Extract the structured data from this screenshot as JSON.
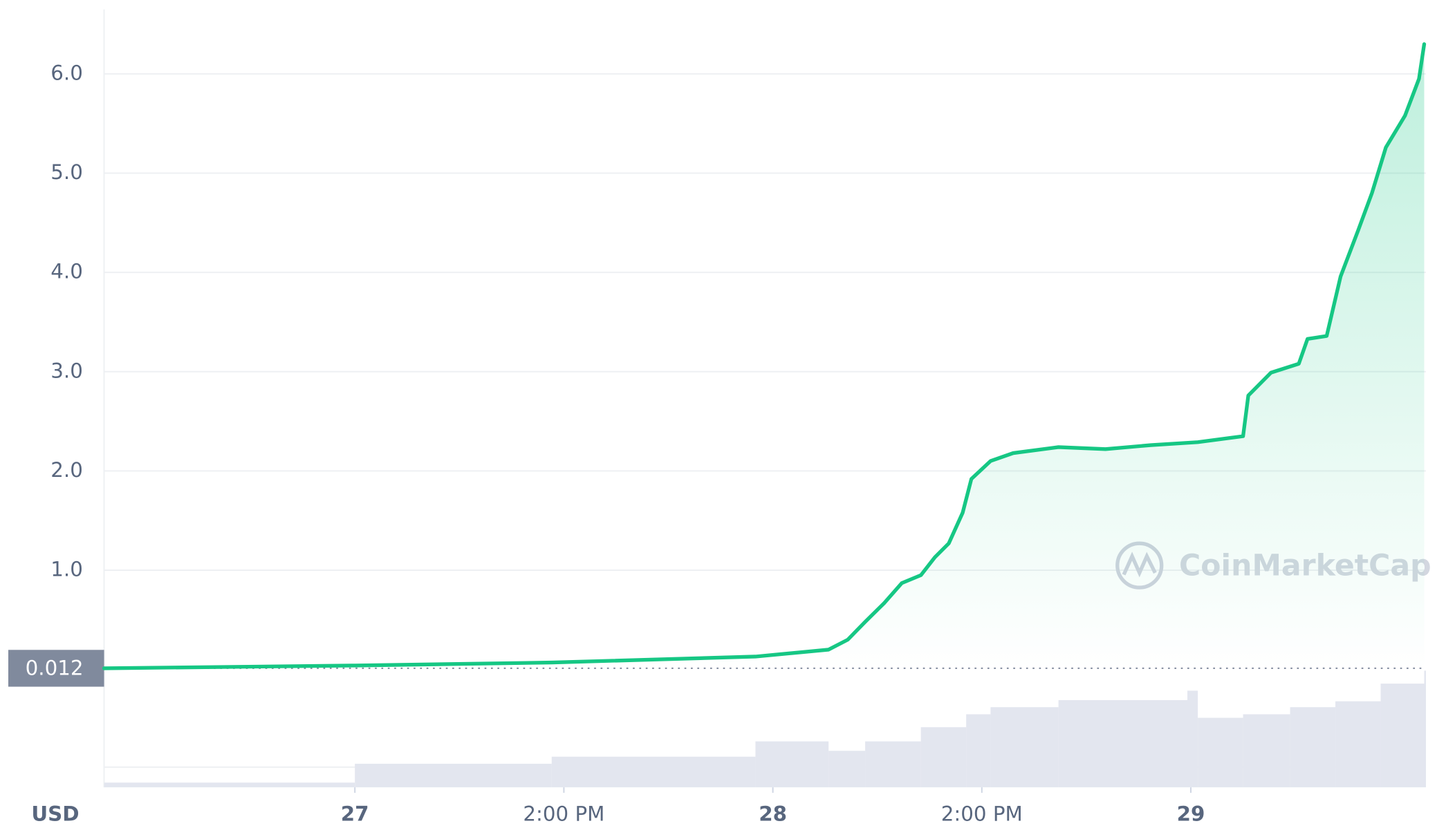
{
  "chart_data": {
    "type": "line",
    "currency": "USD",
    "watermark": "CoinMarketCap",
    "reference_price": {
      "value": 0.012,
      "label": "0.012"
    },
    "x": [
      -14.4,
      0,
      11.3,
      23.0,
      27.2,
      28.3,
      29.3,
      30.4,
      31.4,
      32.5,
      33.3,
      34.1,
      34.9,
      35.4,
      36.5,
      37.8,
      40.4,
      43.1,
      45.7,
      48.4,
      51.0,
      51.3,
      52.6,
      54.2,
      54.7,
      55.8,
      56.6,
      57.6,
      58.4,
      59.2,
      60.3,
      61.1,
      61.4
    ],
    "series": [
      {
        "name": "Price",
        "color": "#16c784",
        "values": [
          0.012,
          0.04,
          0.07,
          0.13,
          0.2,
          0.3,
          0.48,
          0.67,
          0.87,
          0.95,
          1.13,
          1.27,
          1.58,
          1.92,
          2.1,
          2.18,
          2.24,
          2.22,
          2.26,
          2.29,
          2.35,
          2.76,
          2.99,
          3.08,
          3.33,
          3.36,
          3.96,
          4.42,
          4.8,
          5.26,
          5.58,
          5.95,
          6.3
        ]
      }
    ],
    "volume": {
      "color": "#e3e6ef",
      "ylim": [
        0,
        100
      ],
      "x": [
        -14.4,
        0,
        11.3,
        23.0,
        27.2,
        29.3,
        32.5,
        35.1,
        36.5,
        40.4,
        47.8,
        48.4,
        51.0,
        53.7,
        56.3,
        58.9,
        61.4
      ],
      "values": [
        4,
        20,
        26,
        39,
        31,
        39,
        51,
        62,
        68,
        74,
        82,
        59,
        62,
        68,
        73,
        88,
        99
      ]
    },
    "xlim": [
      -14.4,
      61.5
    ],
    "ylim": [
      0,
      6.65
    ],
    "xticks": [
      {
        "value": 0,
        "label": "27"
      },
      {
        "value": 12,
        "label": "2:00 PM"
      },
      {
        "value": 24,
        "label": "28"
      },
      {
        "value": 36,
        "label": "2:00 PM"
      },
      {
        "value": 48,
        "label": "29"
      }
    ],
    "yticks": [
      {
        "value": 1,
        "label": "1.0"
      },
      {
        "value": 2,
        "label": "2.0"
      },
      {
        "value": 3,
        "label": "3.0"
      },
      {
        "value": 4,
        "label": "4.0"
      },
      {
        "value": 5,
        "label": "5.0"
      },
      {
        "value": 6,
        "label": "6.0"
      }
    ],
    "grid": true
  }
}
